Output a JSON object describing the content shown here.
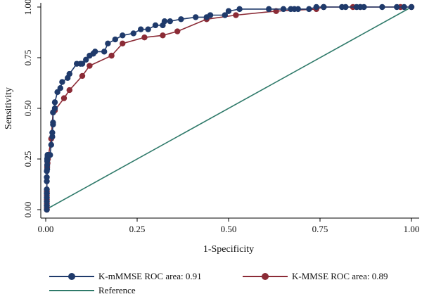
{
  "chart_data": {
    "type": "line",
    "xlabel": "1-Specificity",
    "ylabel": "Sensitivity",
    "xlim": [
      0,
      1
    ],
    "ylim": [
      0,
      1
    ],
    "xticks": [
      "0.00",
      "0.25",
      "0.50",
      "0.75",
      "1.00"
    ],
    "yticks": [
      "0.00",
      "0.25",
      "0.50",
      "0.75",
      "1.00"
    ],
    "grid": false,
    "legend_position": "bottom",
    "series": [
      {
        "name": "K-mMMSE ROC area: 0.91",
        "color": "#1f3a6b",
        "markers": true,
        "x": [
          0.003,
          0.003,
          0.003,
          0.003,
          0.003,
          0.003,
          0.003,
          0.003,
          0.003,
          0.004,
          0.004,
          0.004,
          0.004,
          0.005,
          0.005,
          0.008,
          0.012,
          0.015,
          0.018,
          0.018,
          0.02,
          0.02,
          0.02,
          0.025,
          0.025,
          0.032,
          0.04,
          0.045,
          0.06,
          0.065,
          0.085,
          0.095,
          0.1,
          0.11,
          0.12,
          0.13,
          0.135,
          0.16,
          0.17,
          0.19,
          0.21,
          0.24,
          0.26,
          0.28,
          0.3,
          0.32,
          0.325,
          0.34,
          0.37,
          0.41,
          0.44,
          0.45,
          0.49,
          0.5,
          0.53,
          0.61,
          0.65,
          0.67,
          0.68,
          0.69,
          0.72,
          0.74,
          0.76,
          0.76,
          0.81,
          0.82,
          0.85,
          0.86,
          0.87,
          0.92,
          0.96,
          0.98,
          1.0
        ],
        "y": [
          0.0,
          0.02,
          0.04,
          0.06,
          0.08,
          0.1,
          0.14,
          0.16,
          0.19,
          0.2,
          0.22,
          0.24,
          0.25,
          0.26,
          0.27,
          0.27,
          0.27,
          0.32,
          0.36,
          0.38,
          0.42,
          0.43,
          0.48,
          0.5,
          0.53,
          0.58,
          0.6,
          0.63,
          0.65,
          0.67,
          0.72,
          0.72,
          0.72,
          0.74,
          0.76,
          0.77,
          0.78,
          0.78,
          0.82,
          0.84,
          0.86,
          0.87,
          0.89,
          0.89,
          0.91,
          0.91,
          0.93,
          0.93,
          0.94,
          0.95,
          0.95,
          0.96,
          0.96,
          0.98,
          0.99,
          0.99,
          0.99,
          0.99,
          0.99,
          0.99,
          0.99,
          1.0,
          1.0,
          1.0,
          1.0,
          1.0,
          1.0,
          1.0,
          1.0,
          1.0,
          1.0,
          1.0,
          1.0
        ]
      },
      {
        "name": "K-MMSE ROC area: 0.89",
        "color": "#8b2b36",
        "markers": true,
        "x": [
          0.003,
          0.003,
          0.003,
          0.003,
          0.003,
          0.003,
          0.003,
          0.003,
          0.004,
          0.005,
          0.006,
          0.015,
          0.02,
          0.025,
          0.05,
          0.065,
          0.1,
          0.12,
          0.18,
          0.21,
          0.27,
          0.32,
          0.36,
          0.44,
          0.52,
          0.63,
          0.74,
          0.76,
          0.84,
          0.86,
          0.97,
          1.0
        ],
        "y": [
          0.0,
          0.01,
          0.02,
          0.03,
          0.05,
          0.07,
          0.08,
          0.09,
          0.21,
          0.23,
          0.25,
          0.35,
          0.48,
          0.49,
          0.55,
          0.59,
          0.66,
          0.71,
          0.76,
          0.82,
          0.85,
          0.86,
          0.88,
          0.94,
          0.96,
          0.98,
          0.99,
          1.0,
          1.0,
          1.0,
          1.0,
          1.0
        ]
      },
      {
        "name": "Reference",
        "color": "#2f7a6a",
        "markers": false,
        "x": [
          0,
          1
        ],
        "y": [
          0,
          1
        ]
      }
    ]
  }
}
